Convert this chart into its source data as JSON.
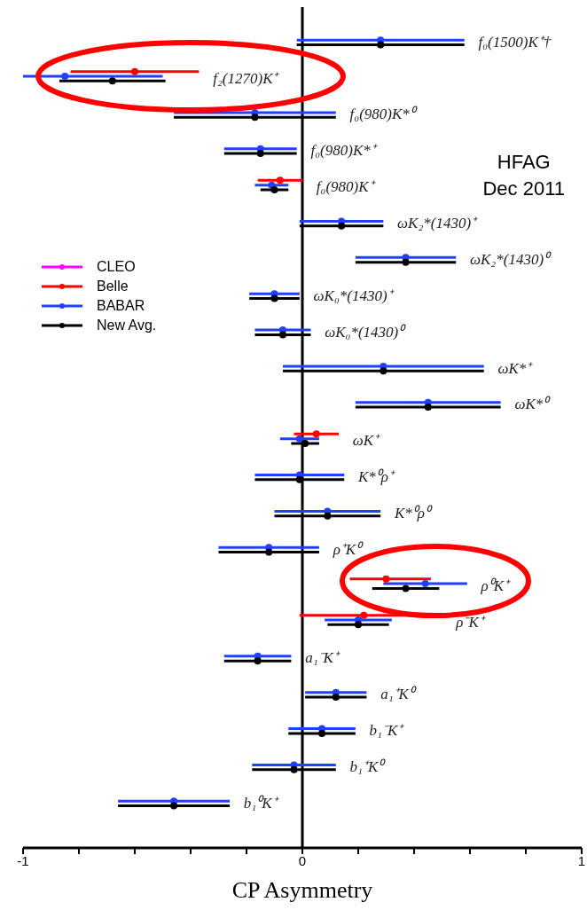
{
  "chart_data": {
    "type": "scatter",
    "orientation": "horizontal",
    "xlabel": "CP Asymmetry",
    "categories": [
      "f₀(1500)K⁺†",
      "f₂(1270)K⁺",
      "f₀(980)K*⁰",
      "f₀(980)K*⁺",
      "f₀(980)K⁺",
      "ωK₂*(1430)⁺",
      "ωK₂*(1430)⁰",
      "ωK₀*(1430)⁺",
      "ωK₀*(1430)⁰",
      "ωK*⁺",
      "ωK*⁰",
      "ωK⁺",
      "K*⁰ρ⁺",
      "K*⁰ρ⁰",
      "ρ⁺K⁰",
      "ρ⁰K⁺",
      "ρ⁻K⁺",
      "a₁⁻K⁺",
      "a₁⁺K⁰",
      "b₁⁻K⁺",
      "b₁⁺K⁰",
      "b₁⁰K⁺"
    ],
    "xlim": [
      -1,
      1
    ],
    "xticks": [
      -1,
      {
        "value": -0.8,
        "label": null
      },
      {
        "value": -0.6,
        "label": null
      },
      {
        "value": -0.4,
        "label": null
      },
      {
        "value": -0.2,
        "label": null
      },
      0,
      {
        "value": 0.2,
        "label": null
      },
      {
        "value": 0.4,
        "label": null
      },
      {
        "value": 0.6,
        "label": null
      },
      {
        "value": 0.8,
        "label": null
      },
      1
    ],
    "tick_labels": "x",
    "legend": "top left",
    "marker": "circle",
    "ref_lines": [
      {
        "axis": "x",
        "value": 0,
        "color": "#000000"
      }
    ],
    "annotations": [
      "HFAG",
      "Dec 2011"
    ],
    "series": [
      {
        "name": "CLEO",
        "color": "#ff00ff",
        "values": [
          null,
          null,
          null,
          null,
          null,
          null,
          null,
          null,
          null,
          null,
          null,
          null,
          null,
          null,
          null,
          null,
          null,
          null,
          null,
          null,
          null,
          null
        ],
        "errors": [
          null,
          null,
          null,
          null,
          null,
          null,
          null,
          null,
          null,
          null,
          null,
          null,
          null,
          null,
          null,
          null,
          null,
          null,
          null,
          null,
          null,
          null
        ]
      },
      {
        "name": "Belle",
        "color": "#ff0000",
        "values": [
          null,
          -0.6,
          null,
          null,
          -0.08,
          null,
          null,
          null,
          null,
          null,
          null,
          0.05,
          null,
          null,
          null,
          0.3,
          0.22,
          null,
          null,
          null,
          null,
          null
        ],
        "errors": [
          null,
          [
            -0.83,
            -0.37
          ],
          null,
          null,
          [
            -0.16,
            0
          ],
          null,
          null,
          null,
          null,
          null,
          null,
          [
            -0.03,
            0.13
          ],
          null,
          null,
          null,
          [
            0.17,
            0.46
          ],
          [
            -0.01,
            0.5
          ],
          null,
          null,
          null,
          null,
          null
        ]
      },
      {
        "name": "BABAR",
        "color": "#2040ff",
        "values": [
          0.28,
          -0.85,
          -0.17,
          -0.15,
          -0.11,
          0.14,
          0.37,
          -0.1,
          -0.07,
          0.29,
          0.45,
          -0.01,
          -0.01,
          0.09,
          -0.12,
          0.44,
          0.2,
          -0.16,
          0.12,
          0.07,
          -0.03,
          -0.46
        ],
        "errors": [
          [
            -0.02,
            0.58
          ],
          [
            -1,
            -0.5
          ],
          [
            -0.46,
            0.12
          ],
          [
            -0.28,
            -0.02
          ],
          [
            -0.17,
            -0.05
          ],
          [
            -0.01,
            0.29
          ],
          [
            0.19,
            0.55
          ],
          [
            -0.19,
            -0.01
          ],
          [
            -0.17,
            0.03
          ],
          [
            -0.07,
            0.65
          ],
          [
            0.19,
            0.71
          ],
          [
            -0.08,
            0.06
          ],
          [
            -0.17,
            0.15
          ],
          [
            -0.1,
            0.28
          ],
          [
            -0.3,
            0.06
          ],
          [
            0.29,
            0.59
          ],
          [
            0.08,
            0.32
          ],
          [
            -0.28,
            -0.04
          ],
          [
            0.01,
            0.23
          ],
          [
            -0.05,
            0.19
          ],
          [
            -0.18,
            0.12
          ],
          [
            -0.66,
            -0.26
          ]
        ]
      },
      {
        "name": "New Avg.",
        "color": "#000000",
        "values": [
          0.28,
          -0.68,
          -0.17,
          -0.15,
          -0.1,
          0.14,
          0.37,
          -0.1,
          -0.07,
          0.29,
          0.45,
          0.01,
          -0.01,
          0.09,
          -0.12,
          0.37,
          0.2,
          -0.16,
          0.12,
          0.07,
          -0.03,
          -0.46
        ],
        "errors": [
          [
            -0.02,
            0.58
          ],
          [
            -0.87,
            -0.49
          ],
          [
            -0.46,
            0.12
          ],
          [
            -0.28,
            -0.02
          ],
          [
            -0.15,
            -0.05
          ],
          [
            -0.01,
            0.29
          ],
          [
            0.19,
            0.55
          ],
          [
            -0.19,
            -0.01
          ],
          [
            -0.17,
            0.03
          ],
          [
            -0.07,
            0.65
          ],
          [
            0.19,
            0.71
          ],
          [
            -0.04,
            0.06
          ],
          [
            -0.17,
            0.15
          ],
          [
            -0.1,
            0.28
          ],
          [
            -0.3,
            0.06
          ],
          [
            0.25,
            0.49
          ],
          [
            0.09,
            0.31
          ],
          [
            -0.28,
            -0.04
          ],
          [
            0.01,
            0.23
          ],
          [
            -0.05,
            0.19
          ],
          [
            -0.18,
            0.12
          ],
          [
            -0.66,
            -0.26
          ]
        ]
      }
    ]
  }
}
